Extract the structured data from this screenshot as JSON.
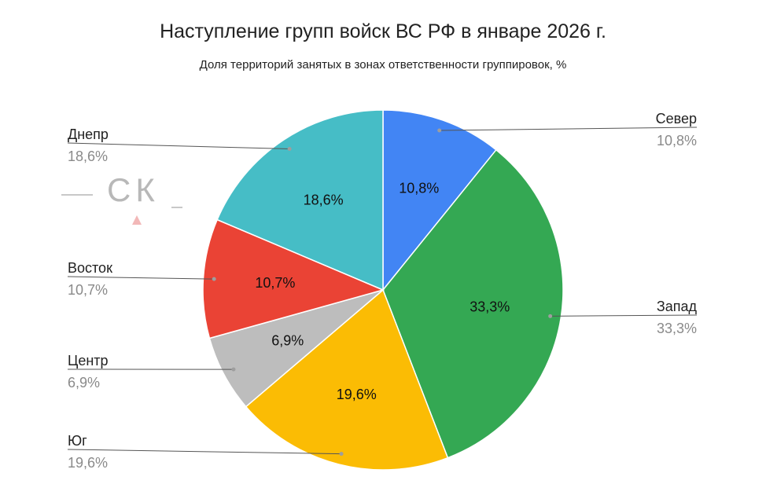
{
  "title": "Наступление групп войск ВС РФ в январе 2026 г.",
  "subtitle": "Доля территорий занятых в зонах ответственности группировок, %",
  "watermark": {
    "text": "СК"
  },
  "chart_data": {
    "type": "pie",
    "title": "Наступление групп войск ВС РФ в январе 2026 г.",
    "subtitle": "Доля территорий занятых в зонах ответственности группировок, %",
    "slices": [
      {
        "name": "Север",
        "value": 10.8,
        "label": "10,8%",
        "color": "#4285F4"
      },
      {
        "name": "Запад",
        "value": 33.3,
        "label": "33,3%",
        "color": "#34A853"
      },
      {
        "name": "Юг",
        "value": 19.6,
        "label": "19,6%",
        "color": "#FBBC04"
      },
      {
        "name": "Центр",
        "value": 6.9,
        "label": "6,9%",
        "color": "#BDBDBD"
      },
      {
        "name": "Восток",
        "value": 10.7,
        "label": "10,7%",
        "color": "#EA4335"
      },
      {
        "name": "Днепр",
        "value": 18.6,
        "label": "18,6%",
        "color": "#46BDC6"
      }
    ],
    "start_angle": "12 o'clock",
    "direction": "clockwise",
    "legend": "callout labels"
  }
}
